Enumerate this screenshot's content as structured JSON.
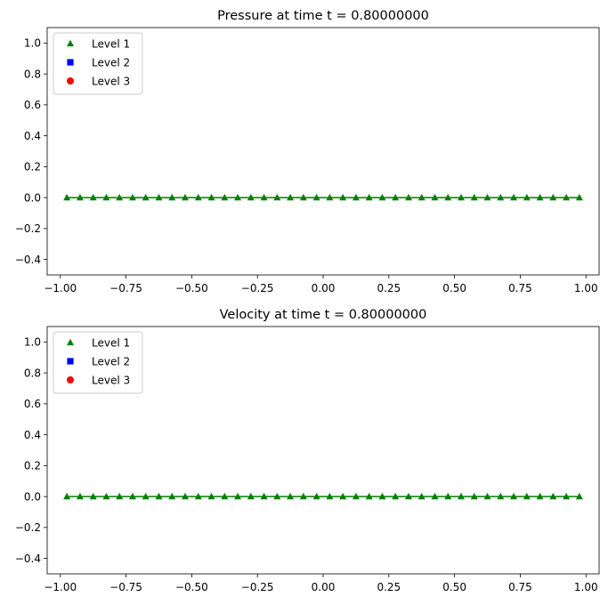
{
  "chart_data": [
    {
      "type": "line",
      "title": "Pressure at time t =     0.80000000",
      "xlabel": "",
      "ylabel": "",
      "xlim": [
        -1.05,
        1.05
      ],
      "ylim": [
        -0.5,
        1.1
      ],
      "xticks": [
        -1.0,
        -0.75,
        -0.5,
        -0.25,
        0.0,
        0.25,
        0.5,
        0.75,
        1.0
      ],
      "xtick_labels": [
        "−1.00",
        "−0.75",
        "−0.50",
        "−0.25",
        "0.00",
        "0.25",
        "0.50",
        "0.75",
        "1.00"
      ],
      "yticks": [
        -0.4,
        -0.2,
        0.0,
        0.2,
        0.4,
        0.6,
        0.8,
        1.0
      ],
      "ytick_labels": [
        "−0.4",
        "−0.2",
        "0.0",
        "0.2",
        "0.4",
        "0.6",
        "0.8",
        "1.0"
      ],
      "legend_position": "upper-left",
      "grid": false,
      "series": [
        {
          "name": "Level 1",
          "marker": "triangle",
          "color": "#008000",
          "line": true,
          "x": [
            -0.975,
            -0.925,
            -0.875,
            -0.825,
            -0.775,
            -0.725,
            -0.675,
            -0.625,
            -0.575,
            -0.525,
            -0.475,
            -0.425,
            -0.375,
            -0.325,
            -0.275,
            -0.225,
            -0.175,
            -0.125,
            -0.075,
            -0.025,
            0.025,
            0.075,
            0.125,
            0.175,
            0.225,
            0.275,
            0.325,
            0.375,
            0.425,
            0.475,
            0.525,
            0.575,
            0.625,
            0.675,
            0.725,
            0.775,
            0.825,
            0.875,
            0.925,
            0.975
          ],
          "y": [
            0,
            0,
            0,
            0,
            0,
            0,
            0,
            0,
            0,
            0,
            0,
            0,
            0,
            0,
            0,
            0,
            0,
            0,
            0,
            0,
            0,
            0,
            0,
            0,
            0,
            0,
            0,
            0,
            0,
            0,
            0,
            0,
            0,
            0,
            0,
            0,
            0,
            0,
            0,
            0
          ]
        },
        {
          "name": "Level 2",
          "marker": "square",
          "color": "#0000ff",
          "line": false,
          "x": [],
          "y": []
        },
        {
          "name": "Level 3",
          "marker": "circle",
          "color": "#ff0000",
          "line": false,
          "x": [],
          "y": []
        }
      ]
    },
    {
      "type": "line",
      "title": "Velocity at time t =     0.80000000",
      "xlabel": "",
      "ylabel": "",
      "xlim": [
        -1.05,
        1.05
      ],
      "ylim": [
        -0.5,
        1.1
      ],
      "xticks": [
        -1.0,
        -0.75,
        -0.5,
        -0.25,
        0.0,
        0.25,
        0.5,
        0.75,
        1.0
      ],
      "xtick_labels": [
        "−1.00",
        "−0.75",
        "−0.50",
        "−0.25",
        "0.00",
        "0.25",
        "0.50",
        "0.75",
        "1.00"
      ],
      "yticks": [
        -0.4,
        -0.2,
        0.0,
        0.2,
        0.4,
        0.6,
        0.8,
        1.0
      ],
      "ytick_labels": [
        "−0.4",
        "−0.2",
        "0.0",
        "0.2",
        "0.4",
        "0.6",
        "0.8",
        "1.0"
      ],
      "legend_position": "upper-left",
      "grid": false,
      "series": [
        {
          "name": "Level 1",
          "marker": "triangle",
          "color": "#008000",
          "line": true,
          "x": [
            -0.975,
            -0.925,
            -0.875,
            -0.825,
            -0.775,
            -0.725,
            -0.675,
            -0.625,
            -0.575,
            -0.525,
            -0.475,
            -0.425,
            -0.375,
            -0.325,
            -0.275,
            -0.225,
            -0.175,
            -0.125,
            -0.075,
            -0.025,
            0.025,
            0.075,
            0.125,
            0.175,
            0.225,
            0.275,
            0.325,
            0.375,
            0.425,
            0.475,
            0.525,
            0.575,
            0.625,
            0.675,
            0.725,
            0.775,
            0.825,
            0.875,
            0.925,
            0.975
          ],
          "y": [
            0,
            0,
            0,
            0,
            0,
            0,
            0,
            0,
            0,
            0,
            0,
            0,
            0,
            0,
            0,
            0,
            0,
            0,
            0,
            0,
            0,
            0,
            0,
            0,
            0,
            0,
            0,
            0,
            0,
            0,
            0,
            0,
            0,
            0,
            0,
            0,
            0,
            0,
            0,
            0
          ]
        },
        {
          "name": "Level 2",
          "marker": "square",
          "color": "#0000ff",
          "line": false,
          "x": [],
          "y": []
        },
        {
          "name": "Level 3",
          "marker": "circle",
          "color": "#ff0000",
          "line": false,
          "x": [],
          "y": []
        }
      ]
    }
  ]
}
